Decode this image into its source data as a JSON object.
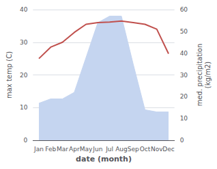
{
  "chart_data": {
    "type": "line",
    "categories": [
      "Jan",
      "Feb",
      "Mar",
      "Apr",
      "May",
      "Jun",
      "Jul",
      "Aug",
      "Sep",
      "Oct",
      "Nov",
      "Dec"
    ],
    "xlabel": "date (month)",
    "ylabel": "max temp (C)",
    "y2label": "med. precipitation\n(kg/m2)",
    "ylim": [
      0,
      40
    ],
    "yticks": [
      0,
      10,
      20,
      30,
      40
    ],
    "y2lim": [
      0,
      60
    ],
    "y2ticks": [
      0,
      10,
      20,
      30,
      40,
      50,
      60
    ],
    "grid": true,
    "series": [
      {
        "type": "line",
        "color": "#c0504d",
        "values": [
          25.0,
          28.5,
          30.0,
          33.0,
          35.5,
          36.0,
          36.2,
          36.5,
          36.0,
          35.5,
          34.0,
          26.5
        ]
      },
      {
        "type": "area",
        "axis": "y2",
        "color": "#c5d5f0",
        "values": [
          17,
          19,
          19,
          22,
          38,
          54,
          57,
          57,
          35,
          14,
          13,
          13
        ]
      }
    ]
  }
}
